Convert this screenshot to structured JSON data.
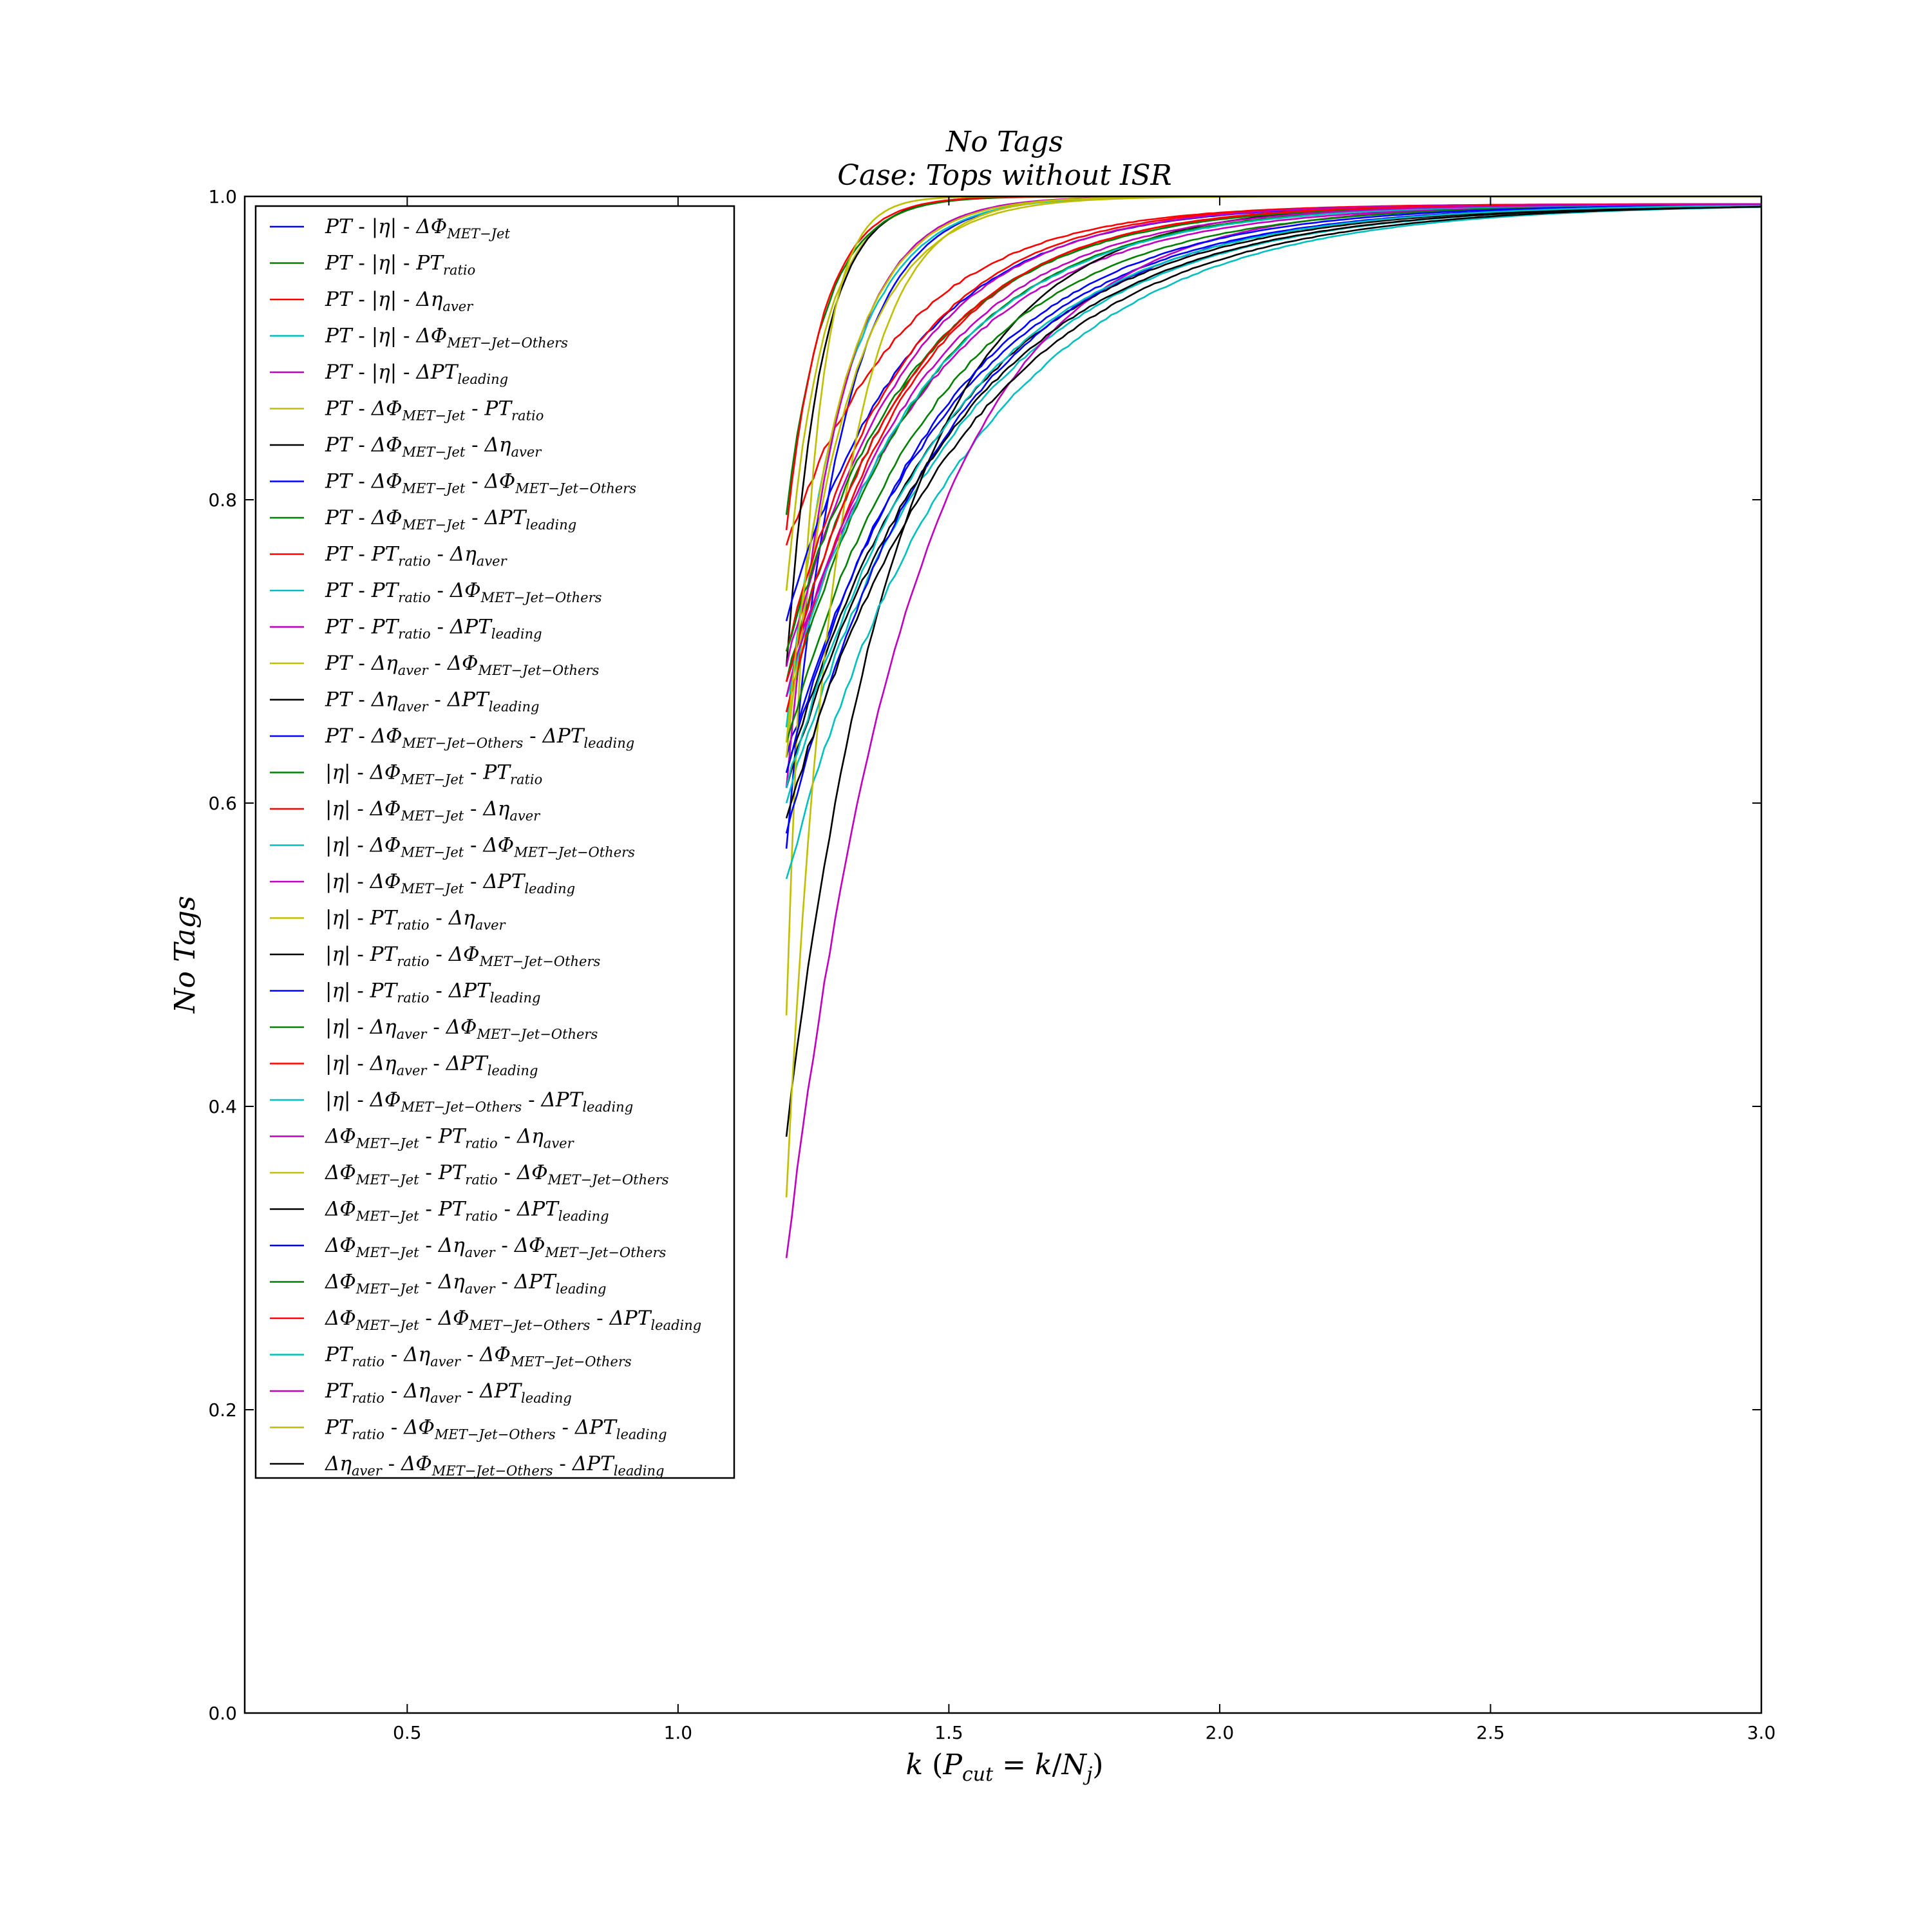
{
  "chart_data": {
    "type": "line",
    "title": "No Tags",
    "subtitle": "Case:  Tops without ISR",
    "xlabel": "k (P_cut = k/N_j)",
    "ylabel": "No Tags",
    "xlim": [
      0.2,
      3.0
    ],
    "ylim": [
      0.0,
      1.0
    ],
    "x_ticks": [
      "0.5",
      "1.0",
      "1.5",
      "2.0",
      "2.5",
      "3.0"
    ],
    "y_ticks": [
      "0.0",
      "0.2",
      "0.4",
      "0.6",
      "0.8",
      "1.0"
    ],
    "grid": false,
    "legend_position": "upper-left",
    "series": [
      {
        "name": "PT - |η| - ΔΦ_MET−Jet",
        "color": "#0000ff",
        "start": 0.57,
        "rate": 10.0,
        "plateau": 1.0
      },
      {
        "name": "PT - |η| - PT_ratio",
        "color": "#008000",
        "start": 0.68,
        "rate": 4.4,
        "plateau": 0.995
      },
      {
        "name": "PT - |η| - Δη_aver",
        "color": "#ff0000",
        "start": 0.77,
        "rate": 4.6,
        "plateau": 0.995
      },
      {
        "name": "PT - |η| - ΔΦ_MET−Jet−Others",
        "color": "#00bfbf",
        "start": 0.6,
        "rate": 3.1,
        "plateau": 0.995
      },
      {
        "name": "PT - |η| - ΔPT_leading",
        "color": "#bf00bf",
        "start": 0.68,
        "rate": 3.7,
        "plateau": 0.995
      },
      {
        "name": "PT - ΔΦ_MET−Jet - PT_ratio",
        "color": "#bfbf00",
        "start": 0.74,
        "rate": 15.0,
        "plateau": 1.0
      },
      {
        "name": "PT - ΔΦ_MET−Jet - Δη_aver",
        "color": "#000000",
        "start": 0.69,
        "rate": 16.0,
        "plateau": 1.0
      },
      {
        "name": "PT - ΔΦ_MET−Jet - ΔΦ_MET−Jet−Others",
        "color": "#0000ff",
        "start": 0.63,
        "rate": 3.3,
        "plateau": 0.995
      },
      {
        "name": "PT - ΔΦ_MET−Jet - ΔPT_leading",
        "color": "#008000",
        "start": 0.79,
        "rate": 14.0,
        "plateau": 1.0
      },
      {
        "name": "PT - PT_ratio - Δη_aver",
        "color": "#ff0000",
        "start": 0.78,
        "rate": 15.0,
        "plateau": 1.0
      },
      {
        "name": "PT - PT_ratio - ΔΦ_MET−Jet−Others",
        "color": "#00bfbf",
        "start": 0.65,
        "rate": 9.5,
        "plateau": 1.0
      },
      {
        "name": "PT - PT_ratio - ΔPT_leading",
        "color": "#bf00bf",
        "start": 0.61,
        "rate": 10.5,
        "plateau": 1.0
      },
      {
        "name": "PT - Δη_aver - ΔΦ_MET−Jet−Others",
        "color": "#bfbf00",
        "start": 0.46,
        "rate": 22.0,
        "plateau": 1.0
      },
      {
        "name": "PT - Δη_aver - ΔPT_leading",
        "color": "#000000",
        "start": 0.38,
        "rate": 4.9,
        "plateau": 0.995
      },
      {
        "name": "PT - ΔΦ_MET−Jet−Others - ΔPT_leading",
        "color": "#0000ff",
        "start": 0.72,
        "rate": 4.5,
        "plateau": 0.995
      },
      {
        "name": "|η| - ΔΦ_MET−Jet - PT_ratio",
        "color": "#008000",
        "start": 0.66,
        "rate": 4.0,
        "plateau": 0.995
      },
      {
        "name": "|η| - ΔΦ_MET−Jet - Δη_aver",
        "color": "#ff0000",
        "start": 0.66,
        "rate": 4.5,
        "plateau": 0.995
      },
      {
        "name": "|η| - ΔΦ_MET−Jet - ΔΦ_MET−Jet−Others",
        "color": "#00bfbf",
        "start": 0.55,
        "rate": 3.0,
        "plateau": 0.995
      },
      {
        "name": "|η| - ΔΦ_MET−Jet - ΔPT_leading",
        "color": "#bf00bf",
        "start": 0.3,
        "rate": 4.3,
        "plateau": 0.995
      },
      {
        "name": "|η| - PT_ratio - Δη_aver",
        "color": "#bfbf00",
        "start": 0.63,
        "rate": 9.0,
        "plateau": 1.0
      },
      {
        "name": "|η| - PT_ratio - ΔΦ_MET−Jet−Others",
        "color": "#000000",
        "start": 0.62,
        "rate": 3.2,
        "plateau": 0.995
      },
      {
        "name": "|η| - PT_ratio - ΔPT_leading",
        "color": "#0000ff",
        "start": 0.58,
        "rate": 3.4,
        "plateau": 0.995
      },
      {
        "name": "|η| - Δη_aver - ΔΦ_MET−Jet−Others",
        "color": "#008000",
        "start": 0.64,
        "rate": 3.6,
        "plateau": 0.995
      },
      {
        "name": "|η| - Δη_aver - ΔPT_leading",
        "color": "#ff0000",
        "start": 0.7,
        "rate": 4.8,
        "plateau": 0.995
      },
      {
        "name": "|η| - ΔΦ_MET−Jet−Others - ΔPT_leading",
        "color": "#00bfbf",
        "start": 0.67,
        "rate": 3.9,
        "plateau": 0.995
      },
      {
        "name": "ΔΦ_MET−Jet - PT_ratio - Δη_aver",
        "color": "#bf00bf",
        "start": 0.69,
        "rate": 4.7,
        "plateau": 0.995
      },
      {
        "name": "ΔΦ_MET−Jet - PT_ratio - ΔΦ_MET−Jet−Others",
        "color": "#bfbf00",
        "start": 0.34,
        "rate": 11.0,
        "plateau": 1.0
      },
      {
        "name": "ΔΦ_MET−Jet - PT_ratio - ΔPT_leading",
        "color": "#000000",
        "start": 0.61,
        "rate": 3.1,
        "plateau": 0.995
      },
      {
        "name": "ΔΦ_MET−Jet - Δη_aver - ΔΦ_MET−Jet−Others",
        "color": "#0000ff",
        "start": 0.62,
        "rate": 3.5,
        "plateau": 0.995
      },
      {
        "name": "ΔΦ_MET−Jet - Δη_aver - ΔPT_leading",
        "color": "#008000",
        "start": 0.7,
        "rate": 4.2,
        "plateau": 0.995
      },
      {
        "name": "ΔΦ_MET−Jet - ΔΦ_MET−Jet−Others - ΔPT_leading",
        "color": "#ff0000",
        "start": 0.68,
        "rate": 4.4,
        "plateau": 0.995
      },
      {
        "name": "PT_ratio - Δη_aver - ΔΦ_MET−Jet−Others",
        "color": "#00bfbf",
        "start": 0.61,
        "rate": 3.3,
        "plateau": 0.995
      },
      {
        "name": "PT_ratio - Δη_aver - ΔPT_leading",
        "color": "#bf00bf",
        "start": 0.67,
        "rate": 4.1,
        "plateau": 0.995
      },
      {
        "name": "PT_ratio - ΔΦ_MET−Jet−Others - ΔPT_leading",
        "color": "#bfbf00",
        "start": 0.64,
        "rate": 10.0,
        "plateau": 1.0
      },
      {
        "name": "Δη_aver - ΔΦ_MET−Jet−Others - ΔPT_leading",
        "color": "#000000",
        "start": 0.59,
        "rate": 3.0,
        "plateau": 0.995
      }
    ]
  }
}
